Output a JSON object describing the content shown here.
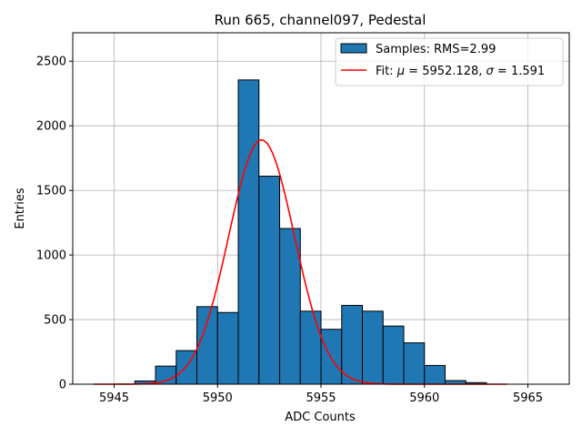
{
  "chart_data": {
    "type": "bar",
    "title": "Run 665, channel097, Pedestal",
    "xlabel": "ADC Counts",
    "ylabel": "Entries",
    "xlim": [
      5943,
      5967
    ],
    "ylim": [
      0,
      2720
    ],
    "xticks": [
      5945,
      5950,
      5955,
      5960,
      5965
    ],
    "yticks": [
      0,
      500,
      1000,
      1500,
      2000,
      2500
    ],
    "grid": true,
    "legend_position": "top-right",
    "bar_color": "#1f77b4",
    "fit_color": "#ff0000",
    "histogram": {
      "name": "Samples: RMS=2.99",
      "bin_width": 1,
      "bins": [
        {
          "left": 5946,
          "count": 25
        },
        {
          "left": 5947,
          "count": 140
        },
        {
          "left": 5948,
          "count": 260
        },
        {
          "left": 5949,
          "count": 600
        },
        {
          "left": 5950,
          "count": 555
        },
        {
          "left": 5951,
          "count": 2355
        },
        {
          "left": 5952,
          "count": 1610
        },
        {
          "left": 5953,
          "count": 1205
        },
        {
          "left": 5954,
          "count": 565
        },
        {
          "left": 5955,
          "count": 425
        },
        {
          "left": 5956,
          "count": 610
        },
        {
          "left": 5957,
          "count": 565
        },
        {
          "left": 5958,
          "count": 450
        },
        {
          "left": 5959,
          "count": 320
        },
        {
          "left": 5960,
          "count": 145
        },
        {
          "left": 5961,
          "count": 28
        },
        {
          "left": 5962,
          "count": 12
        }
      ]
    },
    "fit": {
      "name_prefix": "Fit: ",
      "mu_symbol": "μ",
      "mu": 5952.128,
      "sigma_symbol": "σ",
      "sigma": 1.591,
      "amplitude": 1890,
      "x_range": [
        5944,
        5964
      ]
    }
  }
}
